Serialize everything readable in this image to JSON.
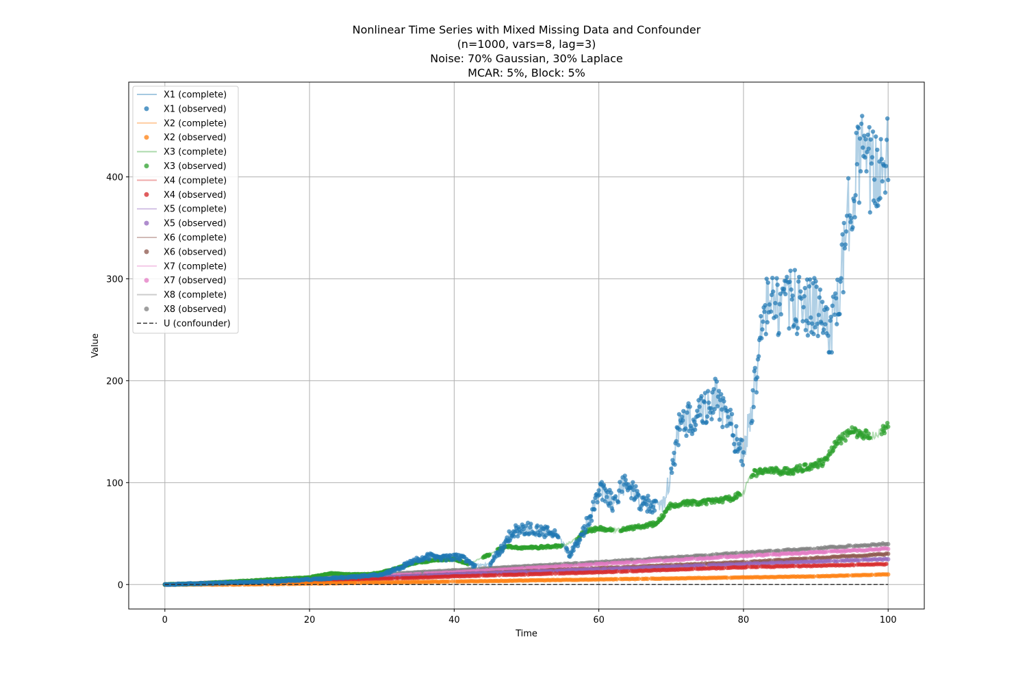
{
  "chart_data": {
    "type": "line",
    "title_lines": [
      "Nonlinear Time Series with Mixed Missing Data and Confounder",
      "(n=1000, vars=8, lag=3)",
      "Noise: 70% Gaussian, 30% Laplace",
      "MCAR: 5%, Block: 5%"
    ],
    "xlabel": "Time",
    "ylabel": "Value",
    "xlim": [
      -5,
      105
    ],
    "ylim": [
      -24,
      493
    ],
    "xticks": [
      0,
      20,
      40,
      60,
      80,
      100
    ],
    "yticks": [
      0,
      100,
      200,
      300,
      400
    ],
    "grid": true,
    "legend_position": "top-left",
    "legend": [
      "X1 (complete)",
      "X1 (observed)",
      "X2 (complete)",
      "X2 (observed)",
      "X3 (complete)",
      "X3 (observed)",
      "X4 (complete)",
      "X4 (observed)",
      "X5 (complete)",
      "X5 (observed)",
      "X6 (complete)",
      "X6 (observed)",
      "X7 (complete)",
      "X7 (observed)",
      "X8 (complete)",
      "X8 (observed)",
      "U (confounder)"
    ],
    "series": [
      {
        "name": "X1",
        "color": "#1f77b4",
        "x": [
          0,
          5,
          10,
          15,
          20,
          25,
          30,
          33,
          35,
          37,
          39,
          41,
          43,
          45,
          47,
          48,
          50,
          52,
          54,
          55,
          56,
          57,
          58,
          59,
          60,
          61,
          62,
          63,
          64,
          65,
          66,
          67,
          68,
          69,
          70,
          71,
          72,
          73,
          74,
          75,
          76,
          77,
          78,
          79,
          80,
          81,
          82,
          83,
          84,
          85,
          86,
          87,
          88,
          89,
          90,
          91,
          92,
          93,
          94,
          95,
          96,
          97,
          98,
          99,
          100
        ],
        "y": [
          0,
          1,
          2,
          3,
          5,
          7,
          10,
          18,
          25,
          28,
          26,
          27,
          18,
          20,
          40,
          52,
          55,
          52,
          50,
          38,
          30,
          40,
          55,
          70,
          95,
          90,
          80,
          95,
          98,
          88,
          80,
          78,
          75,
          80,
          110,
          150,
          160,
          165,
          170,
          175,
          185,
          170,
          160,
          140,
          130,
          165,
          220,
          270,
          280,
          270,
          275,
          280,
          270,
          275,
          270,
          260,
          250,
          270,
          330,
          390,
          420,
          410,
          400,
          410,
          440
        ]
      },
      {
        "name": "X2",
        "color": "#ff7f0e",
        "x": [
          0,
          10,
          20,
          30,
          40,
          50,
          60,
          70,
          80,
          90,
          100
        ],
        "y": [
          0,
          0,
          1,
          2,
          3,
          4,
          5,
          6,
          7,
          8,
          10
        ]
      },
      {
        "name": "X3",
        "color": "#2ca02c",
        "x": [
          0,
          5,
          10,
          15,
          20,
          23,
          25,
          28,
          30,
          33,
          35,
          38,
          40,
          42,
          45,
          47,
          50,
          53,
          55,
          57,
          58,
          60,
          62,
          64,
          66,
          68,
          70,
          72,
          74,
          76,
          78,
          80,
          81,
          83,
          85,
          87,
          89,
          91,
          92,
          93,
          95,
          97,
          98,
          100
        ],
        "y": [
          0,
          1,
          3,
          5,
          7,
          11,
          10,
          10,
          12,
          18,
          22,
          24,
          25,
          20,
          30,
          37,
          36,
          37,
          38,
          45,
          52,
          55,
          53,
          55,
          57,
          60,
          78,
          80,
          80,
          82,
          84,
          90,
          108,
          112,
          111,
          112,
          116,
          120,
          130,
          140,
          150,
          147,
          146,
          155
        ]
      },
      {
        "name": "X4",
        "color": "#d62728",
        "x": [
          0,
          20,
          40,
          60,
          80,
          100
        ],
        "y": [
          0,
          3,
          8,
          12,
          17,
          20
        ]
      },
      {
        "name": "X5",
        "color": "#9467bd",
        "x": [
          0,
          20,
          40,
          60,
          80,
          100
        ],
        "y": [
          0,
          4,
          10,
          15,
          20,
          25
        ]
      },
      {
        "name": "X6",
        "color": "#8c564b",
        "x": [
          0,
          20,
          40,
          60,
          80,
          100
        ],
        "y": [
          0,
          4,
          10,
          16,
          22,
          30
        ]
      },
      {
        "name": "X7",
        "color": "#e377c2",
        "x": [
          0,
          20,
          40,
          60,
          80,
          100
        ],
        "y": [
          0,
          5,
          12,
          20,
          28,
          35
        ]
      },
      {
        "name": "X8",
        "color": "#7f7f7f",
        "x": [
          0,
          20,
          40,
          60,
          80,
          100
        ],
        "y": [
          0,
          6,
          14,
          22,
          31,
          40
        ]
      }
    ],
    "confounder": {
      "name": "U",
      "color": "#333333",
      "x": [
        0,
        100
      ],
      "y": [
        0,
        0
      ]
    },
    "missing_ranges": {
      "X1": [
        [
          43,
          45
        ],
        [
          54.5,
          55.5
        ],
        [
          68,
          70
        ],
        [
          80,
          81
        ]
      ],
      "X3": [
        [
          42,
          44
        ],
        [
          45,
          46
        ],
        [
          55,
          57
        ],
        [
          62,
          63
        ],
        [
          79.5,
          81
        ],
        [
          97.5,
          99
        ]
      ]
    }
  }
}
